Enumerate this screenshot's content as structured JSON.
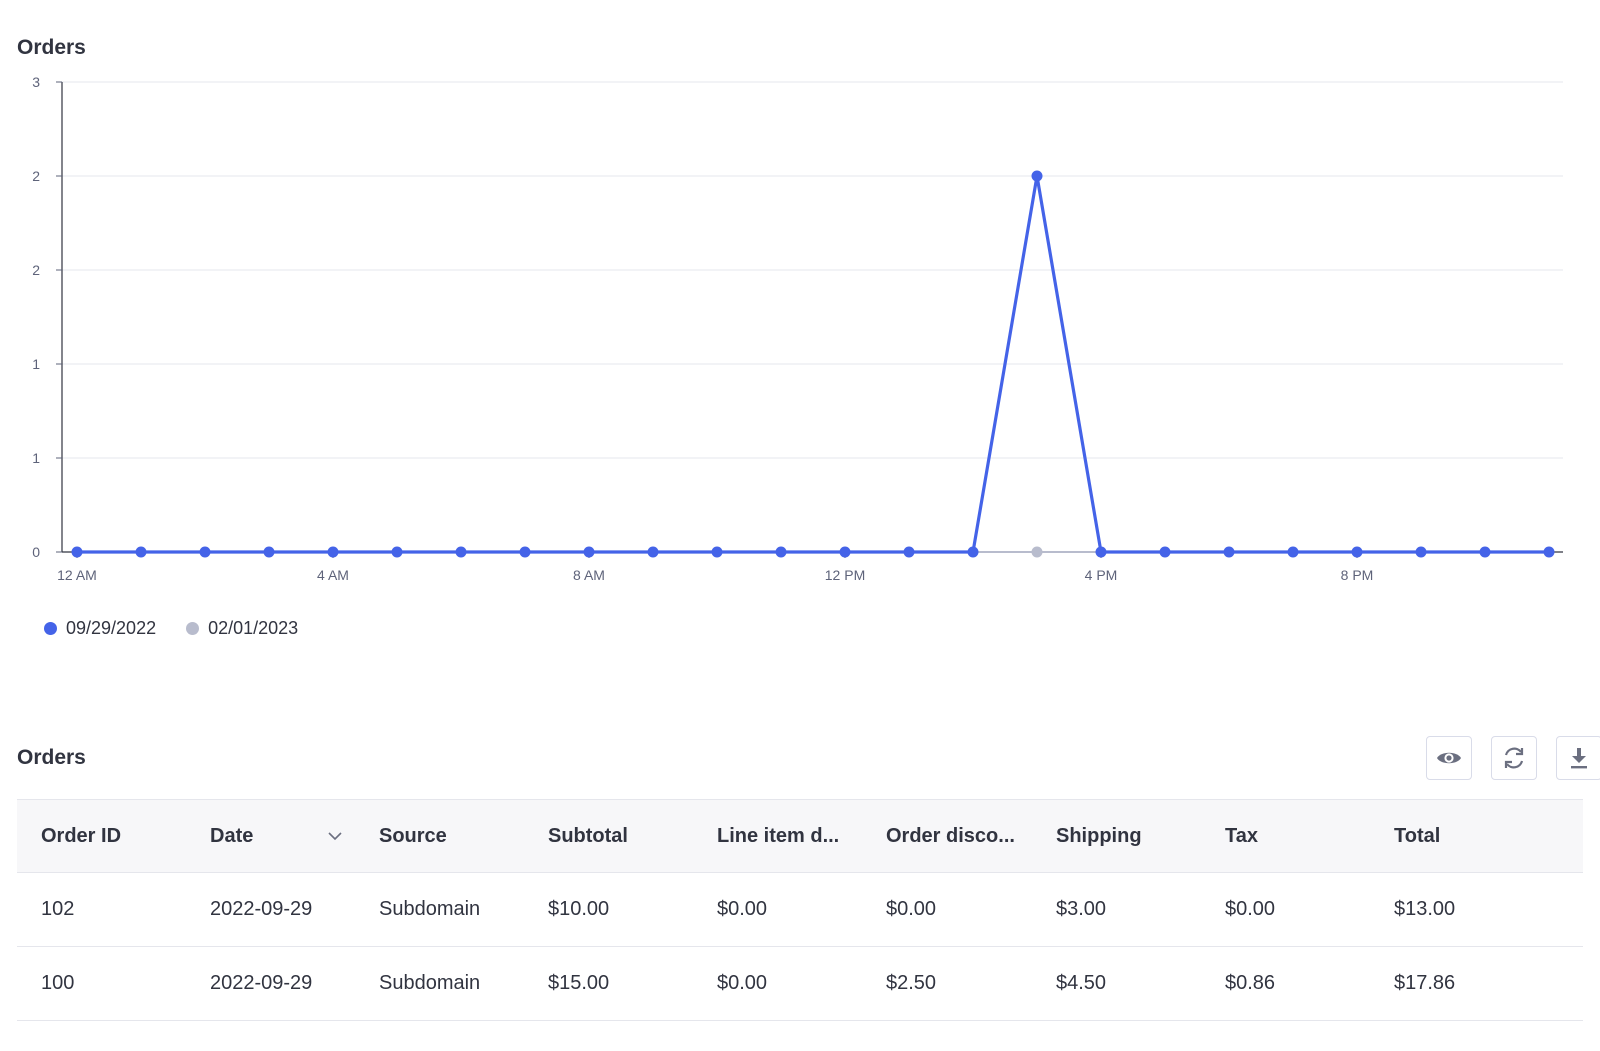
{
  "chart": {
    "title": "Orders"
  },
  "chart_data": {
    "type": "line",
    "title": "Orders",
    "xlabel": "",
    "ylabel": "",
    "x_tick_labels": [
      "12 AM",
      "4 AM",
      "8 AM",
      "12 PM",
      "4 PM",
      "8 PM"
    ],
    "y_tick_labels": [
      "0",
      "1",
      "1",
      "2",
      "2",
      "3"
    ],
    "ylim": [
      0,
      2.5
    ],
    "grid": true,
    "legend_position": "bottom-left",
    "x_hours": [
      0,
      1,
      2,
      3,
      4,
      5,
      6,
      7,
      8,
      9,
      10,
      11,
      12,
      13,
      14,
      15,
      16,
      17,
      18,
      19,
      20,
      21,
      22,
      23
    ],
    "series": [
      {
        "name": "09/29/2022",
        "color": "#4463e8",
        "values": [
          0,
          0,
          0,
          0,
          0,
          0,
          0,
          0,
          0,
          0,
          0,
          0,
          0,
          0,
          0,
          2,
          0,
          0,
          0,
          0,
          0,
          0,
          0,
          0
        ]
      },
      {
        "name": "02/01/2023",
        "color": "#b8bccd",
        "values": [
          0,
          0,
          0,
          0,
          0,
          0,
          0,
          0,
          0,
          0,
          0,
          0,
          0,
          0,
          0,
          0,
          0,
          0,
          0,
          0,
          0,
          0,
          0,
          0
        ]
      }
    ]
  },
  "table": {
    "title": "Orders",
    "toolbar": {
      "view_icon": "eye-icon",
      "refresh_icon": "refresh-icon",
      "download_icon": "download-icon"
    },
    "columns": [
      "Order ID",
      "Date",
      "Source",
      "Subtotal",
      "Line item d...",
      "Order disco...",
      "Shipping",
      "Tax",
      "Total"
    ],
    "sort_icon": "chevron-down-icon",
    "link_color": "#3c64f4",
    "rows": [
      [
        "102",
        "2022-09-29",
        "Subdomain",
        "$10.00",
        "$0.00",
        "$0.00",
        "$3.00",
        "$0.00",
        "$13.00"
      ],
      [
        "100",
        "2022-09-29",
        "Subdomain",
        "$15.00",
        "$0.00",
        "$2.50",
        "$4.50",
        "$0.86",
        "$17.86"
      ]
    ]
  }
}
